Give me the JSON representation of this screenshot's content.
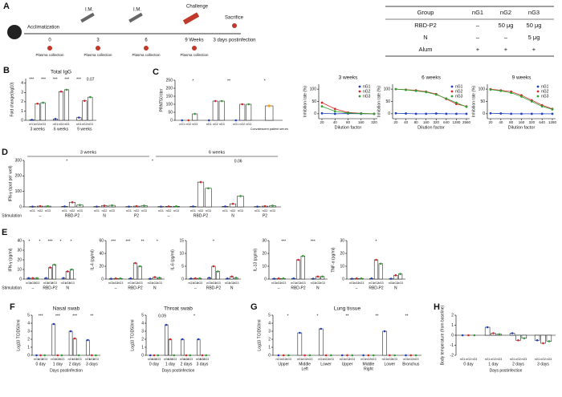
{
  "panel_a": {
    "panel": "A",
    "start": "Acclimatization",
    "injection": "I.M.",
    "challenge": "Challenge",
    "sacrifice": "Sacrifice",
    "timepoints": [
      "0",
      "3",
      "6",
      "9 Weeks"
    ],
    "postinfection": "3 days postinfection",
    "collection": "Plasma collection",
    "table": {
      "header": [
        "Group",
        "nG1",
        "nG2",
        "nG3"
      ],
      "rows": [
        [
          "RBD-P2",
          "–",
          "50 μg",
          "50 μg"
        ],
        [
          "N",
          "–",
          "–",
          "5 μg"
        ],
        [
          "Alum",
          "+",
          "+",
          "+"
        ]
      ]
    }
  },
  "chart_data": [
    {
      "panel": "B",
      "type": "bar",
      "title": "Total IgG",
      "ylabel": "Fold change(log10)",
      "categories": [
        "3 weeks",
        "6 weeks",
        "9 weeks"
      ],
      "series": [
        {
          "name": "nG1",
          "color": "#1f3fbf",
          "values": [
            0.05,
            0.15,
            0.3
          ]
        },
        {
          "name": "nG2",
          "color": "#d62728",
          "values": [
            1.8,
            3.1,
            2.1
          ]
        },
        {
          "name": "nG3",
          "color": "#2ca02c",
          "values": [
            1.9,
            3.3,
            2.5
          ]
        }
      ],
      "ylim": [
        0,
        4.5
      ],
      "yticks": [
        0,
        1,
        2,
        3,
        4
      ],
      "annotations": [
        "***",
        "***",
        "***",
        "***",
        "***",
        "0.07"
      ]
    },
    {
      "panel": "C",
      "type": "bar",
      "ylabel": "PRNT50 titer",
      "categories": [
        null,
        null,
        null
      ],
      "series": [
        {
          "name": "nG1",
          "color": "#1f3fbf",
          "values": [
            0,
            0,
            0
          ]
        },
        {
          "name": "nG2",
          "color": "#d62728",
          "values": [
            0,
            120,
            100
          ]
        },
        {
          "name": "nG3",
          "color": "#2ca02c",
          "values": [
            40,
            120,
            100
          ]
        }
      ],
      "extra": {
        "name": "Convalescent patient serum",
        "color": "#f0a020",
        "value": 90
      },
      "ylim": [
        0,
        250
      ],
      "yticks": [
        0,
        50,
        100,
        150,
        200,
        250
      ],
      "annotations": [
        "*",
        "**",
        "*"
      ]
    },
    {
      "type": "line",
      "title": "3 weeks",
      "xlabel": "Dilution factor",
      "ylabel": "Inhibition rate (%)",
      "log": true,
      "x": [
        20,
        40,
        80,
        160,
        320
      ],
      "xlim": [
        20,
        320
      ],
      "xticks": [
        20,
        40,
        80,
        160,
        320
      ],
      "ylim": [
        -20,
        120
      ],
      "yticks": [
        0,
        50,
        100
      ],
      "series": [
        {
          "name": "nG1",
          "color": "#1f3fbf",
          "values": [
            2,
            0,
            1,
            0,
            0
          ]
        },
        {
          "name": "nG2",
          "color": "#d62728",
          "values": [
            45,
            20,
            5,
            2,
            0
          ]
        },
        {
          "name": "nG3",
          "color": "#2ca02c",
          "values": [
            30,
            10,
            3,
            1,
            0
          ]
        }
      ]
    },
    {
      "type": "line",
      "title": "6 weeks",
      "xlabel": "Dilution factor",
      "ylabel": "Inhibition rate (%)",
      "log": true,
      "x": [
        20,
        40,
        80,
        160,
        320,
        640,
        1280,
        2560
      ],
      "xlim": [
        20,
        2560
      ],
      "xticks": [
        20,
        40,
        80,
        160,
        320,
        640,
        1280,
        2560
      ],
      "ylim": [
        -20,
        120
      ],
      "yticks": [
        0,
        50,
        100
      ],
      "series": [
        {
          "name": "nG1",
          "color": "#1f3fbf",
          "values": [
            2,
            1,
            0,
            0,
            1,
            0,
            0,
            0
          ]
        },
        {
          "name": "nG2",
          "color": "#d62728",
          "values": [
            100,
            98,
            95,
            90,
            80,
            60,
            40,
            30
          ]
        },
        {
          "name": "nG3",
          "color": "#2ca02c",
          "values": [
            100,
            97,
            93,
            88,
            78,
            62,
            45,
            28
          ]
        }
      ]
    },
    {
      "type": "line",
      "title": "9 weeks",
      "xlabel": "Dilution factor",
      "ylabel": "Inhibition rate (%)",
      "log": true,
      "x": [
        20,
        40,
        80,
        160,
        320,
        640,
        1280
      ],
      "xlim": [
        20,
        1280
      ],
      "xticks": [
        20,
        40,
        80,
        160,
        320,
        640,
        1280
      ],
      "ylim": [
        -20,
        120
      ],
      "yticks": [
        0,
        50,
        100
      ],
      "series": [
        {
          "name": "nG1",
          "color": "#1f3fbf",
          "values": [
            2,
            1,
            0,
            0,
            0,
            0,
            0
          ]
        },
        {
          "name": "nG2",
          "color": "#d62728",
          "values": [
            100,
            95,
            90,
            75,
            55,
            35,
            20
          ]
        },
        {
          "name": "nG3",
          "color": "#2ca02c",
          "values": [
            98,
            93,
            85,
            70,
            50,
            30,
            18
          ]
        }
      ]
    },
    {
      "panel": "D",
      "type": "bar",
      "ylabel": "IFN-γ (spot per well)",
      "xlabel": "Stimulation",
      "periods": [
        "3 weeks",
        "6 weeks"
      ],
      "categories": [
        "–",
        "RBD-P2",
        "N",
        "P2",
        "–",
        "RBD-P2",
        "N",
        "P2"
      ],
      "series": [
        {
          "name": "nG1",
          "color": "#1f3fbf",
          "values": [
            2,
            3,
            2,
            2,
            2,
            3,
            3,
            2
          ]
        },
        {
          "name": "nG2",
          "color": "#d62728",
          "values": [
            5,
            30,
            8,
            5,
            3,
            160,
            20,
            5
          ]
        },
        {
          "name": "nG3",
          "color": "#2ca02c",
          "values": [
            5,
            12,
            10,
            8,
            4,
            120,
            70,
            8
          ]
        }
      ],
      "ylim": [
        0,
        300
      ],
      "yticks": [
        0,
        100,
        200,
        300
      ],
      "annotations": [
        "*",
        "*",
        "0.06"
      ]
    },
    {
      "panel": "E",
      "type": "bar",
      "ylabel": "IFN-γ (pg/ml)",
      "xlabel": "Stimulation",
      "categories": [
        "–",
        "RBD-P2",
        "N"
      ],
      "series": [
        {
          "name": "nG1",
          "color": "#1f3fbf",
          "values": [
            1,
            1,
            1
          ]
        },
        {
          "name": "nG2",
          "color": "#d62728",
          "values": [
            1,
            12,
            8
          ]
        },
        {
          "name": "nG3",
          "color": "#2ca02c",
          "values": [
            1,
            15,
            10
          ]
        }
      ],
      "ylim": [
        0,
        40
      ],
      "yticks": [
        0,
        10,
        20,
        30,
        40
      ],
      "annotations": [
        "*",
        "*",
        "***",
        "*",
        "*"
      ]
    },
    {
      "type": "bar",
      "ylabel": "IL-4 (pg/ml)",
      "categories": [
        "–",
        "RBD-P2",
        "N"
      ],
      "series": [
        {
          "name": "nG1",
          "color": "#1f3fbf",
          "values": [
            0.5,
            1,
            0.5
          ]
        },
        {
          "name": "nG2",
          "color": "#d62728",
          "values": [
            1,
            25,
            3
          ]
        },
        {
          "name": "nG3",
          "color": "#2ca02c",
          "values": [
            1,
            20,
            2
          ]
        }
      ],
      "ylim": [
        0,
        60
      ],
      "yticks": [
        0,
        20,
        40,
        60
      ],
      "annotations": [
        "***",
        "***",
        "**",
        "*"
      ]
    },
    {
      "type": "bar",
      "ylabel": "IL-6 (pg/ml)",
      "categories": [
        "–",
        "RBD-P2",
        "N"
      ],
      "series": [
        {
          "name": "nG1",
          "color": "#1f3fbf",
          "values": [
            0.2,
            0.5,
            0.2
          ]
        },
        {
          "name": "nG2",
          "color": "#d62728",
          "values": [
            0.3,
            5,
            1
          ]
        },
        {
          "name": "nG3",
          "color": "#2ca02c",
          "values": [
            0.3,
            3,
            0.5
          ]
        }
      ],
      "ylim": [
        0,
        15
      ],
      "yticks": [
        0,
        5,
        10,
        15
      ],
      "annotations": [
        "*"
      ]
    },
    {
      "type": "bar",
      "ylabel": "IL-13 (pg/ml)",
      "categories": [
        "–",
        "RBD-P2",
        "N"
      ],
      "series": [
        {
          "name": "nG1",
          "color": "#1f3fbf",
          "values": [
            0.3,
            0.5,
            0.3
          ]
        },
        {
          "name": "nG2",
          "color": "#d62728",
          "values": [
            0.5,
            15,
            2
          ]
        },
        {
          "name": "nG3",
          "color": "#2ca02c",
          "values": [
            0.5,
            18,
            2
          ]
        }
      ],
      "ylim": [
        0,
        30
      ],
      "yticks": [
        0,
        10,
        20,
        30
      ],
      "annotations": [
        "***",
        "***"
      ]
    },
    {
      "type": "bar",
      "ylabel": "TNF-α (pg/ml)",
      "categories": [
        "–",
        "RBD-P2",
        "N"
      ],
      "series": [
        {
          "name": "nG1",
          "color": "#1f3fbf",
          "values": [
            0.3,
            0.5,
            0.3
          ]
        },
        {
          "name": "nG2",
          "color": "#d62728",
          "values": [
            0.5,
            15,
            3
          ]
        },
        {
          "name": "nG3",
          "color": "#2ca02c",
          "values": [
            0.5,
            12,
            4
          ]
        }
      ],
      "ylim": [
        0,
        30
      ],
      "yticks": [
        0,
        10,
        20,
        30
      ],
      "annotations": [
        "*"
      ]
    },
    {
      "panel": "F",
      "type": "bar",
      "title": "Nasal swab",
      "ylabel": "Log10 TCID50/ml",
      "xlabel": "Days postinfection",
      "categories": [
        "0 day",
        "1 day",
        "2 days",
        "3 days"
      ],
      "series": [
        {
          "name": "nG1",
          "color": "#1f3fbf",
          "values": [
            0,
            3.9,
            3.0,
            1.9
          ]
        },
        {
          "name": "nG2",
          "color": "#d62728",
          "values": [
            0,
            0,
            2.1,
            0
          ]
        },
        {
          "name": "nG3",
          "color": "#2ca02c",
          "values": [
            0,
            0,
            0,
            0
          ]
        }
      ],
      "ylim": [
        0,
        5
      ],
      "yticks": [
        0,
        1,
        2,
        3,
        4,
        5
      ],
      "annotations": [
        "***",
        "***",
        "***",
        "**"
      ]
    },
    {
      "type": "bar",
      "title": "Throat swab",
      "ylabel": "Log10 TCID50/ml",
      "xlabel": "Days postinfection",
      "categories": [
        "0 day",
        "1 day",
        "2 days",
        "3 days"
      ],
      "series": [
        {
          "name": "nG1",
          "color": "#1f3fbf",
          "values": [
            0,
            3.8,
            2.0,
            2.0
          ]
        },
        {
          "name": "nG2",
          "color": "#d62728",
          "values": [
            0,
            2.0,
            0,
            0
          ]
        },
        {
          "name": "nG3",
          "color": "#2ca02c",
          "values": [
            0,
            0,
            0,
            0
          ]
        }
      ],
      "ylim": [
        0,
        5
      ],
      "yticks": [
        0,
        1,
        2,
        3,
        4,
        5
      ],
      "annotations": [
        "0.09",
        "*"
      ]
    },
    {
      "panel": "G",
      "type": "bar",
      "title": "Lung tissue",
      "ylabel": "Log10 TCID50/ml",
      "categories": [
        "Upper",
        "Middle",
        "Lower",
        "Upper",
        "Middle",
        "Lower",
        "Bronchus"
      ],
      "regions": [
        "Left",
        "Right"
      ],
      "series": [
        {
          "name": "nG1",
          "color": "#1f3fbf",
          "values": [
            0,
            2.8,
            3.3,
            0,
            0,
            3.0,
            0
          ]
        },
        {
          "name": "nG2",
          "color": "#d62728",
          "values": [
            0,
            0,
            0,
            0,
            0,
            0,
            0
          ]
        },
        {
          "name": "nG3",
          "color": "#2ca02c",
          "values": [
            0,
            0,
            0,
            0,
            0,
            0,
            0
          ]
        }
      ],
      "ylim": [
        0,
        5
      ],
      "yticks": [
        0,
        1,
        2,
        3,
        4,
        5
      ],
      "annotations": [
        "*",
        "*",
        "**",
        "**",
        "**"
      ]
    },
    {
      "panel": "H",
      "type": "bar",
      "ylabel": "Body temperature (from baseline)",
      "xlabel": "Days postinfection",
      "categories": [
        "0 day",
        "1 day",
        "2 days",
        "3 days"
      ],
      "series": [
        {
          "name": "nG1",
          "color": "#1f3fbf",
          "values": [
            0,
            0.8,
            0.2,
            -0.5
          ]
        },
        {
          "name": "nG2",
          "color": "#d62728",
          "values": [
            0,
            0.2,
            -0.5,
            -0.8
          ]
        },
        {
          "name": "nG3",
          "color": "#2ca02c",
          "values": [
            0,
            0.1,
            -0.3,
            -0.6
          ]
        }
      ],
      "ylim": [
        -2,
        2
      ],
      "yticks": [
        -2,
        -1,
        0,
        1,
        2
      ]
    }
  ]
}
